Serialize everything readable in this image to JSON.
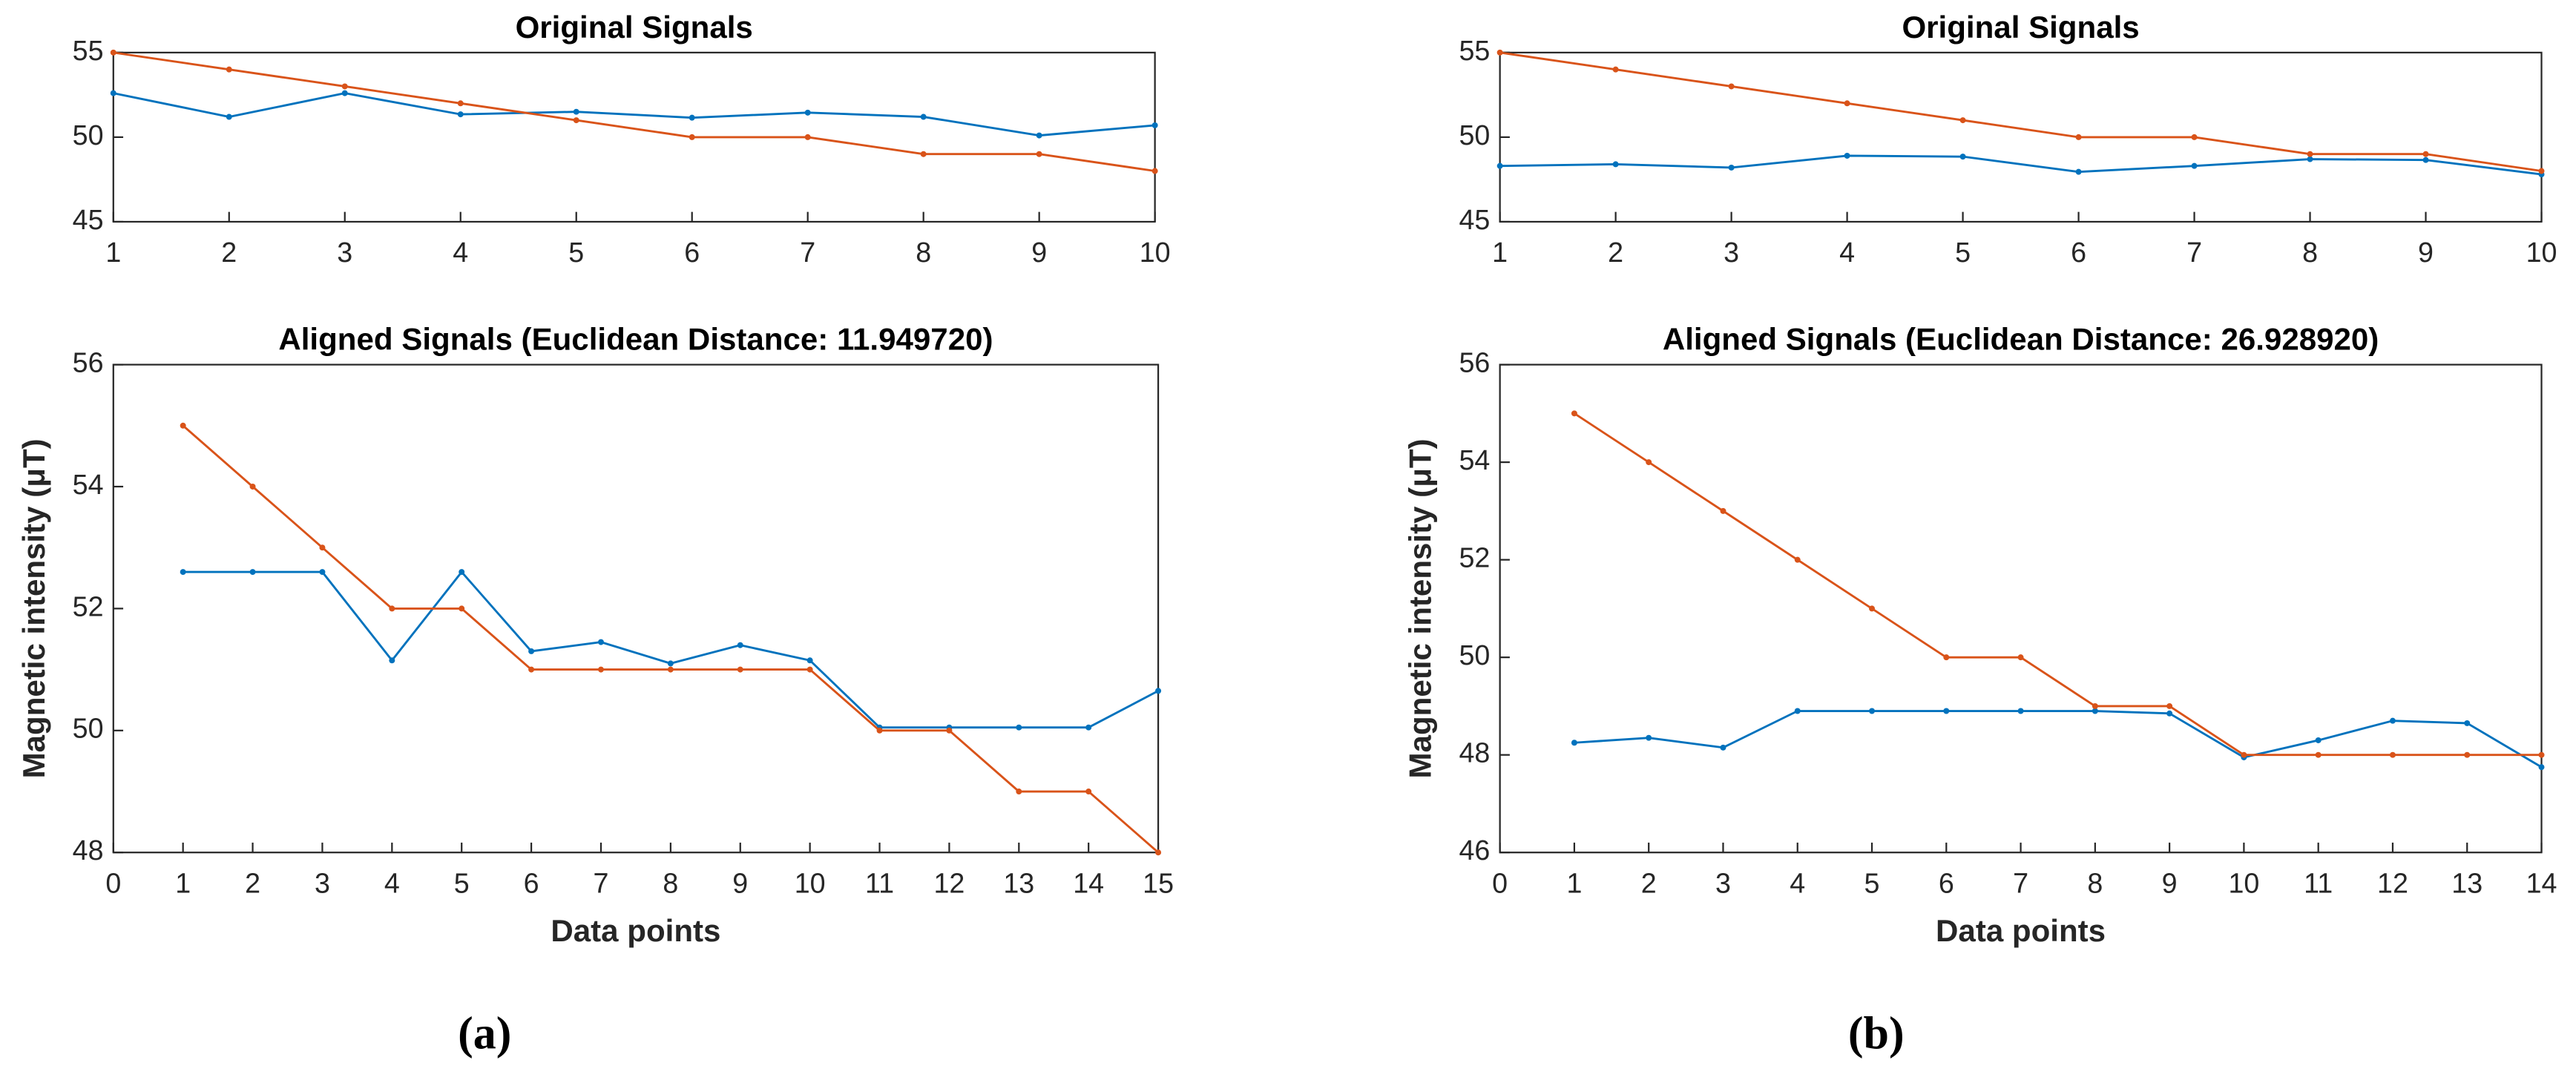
{
  "chart_data": [
    {
      "type": "line",
      "title": "Original Signals",
      "x": [
        1,
        2,
        3,
        4,
        5,
        6,
        7,
        8,
        9,
        10
      ],
      "xlim": [
        1,
        10
      ],
      "xticks": [
        1,
        2,
        3,
        4,
        5,
        6,
        7,
        8,
        9,
        10
      ],
      "ylim": [
        45,
        55
      ],
      "yticks": [
        45,
        50,
        55
      ],
      "series": [
        {
          "color": "#0072BD",
          "values": [
            52.6,
            51.2,
            52.6,
            51.35,
            51.5,
            51.15,
            51.45,
            51.2,
            50.1,
            50.7
          ]
        },
        {
          "color": "#D95319",
          "values": [
            55,
            54,
            53,
            52,
            51,
            50,
            50,
            49,
            49,
            48
          ]
        }
      ]
    },
    {
      "type": "line",
      "title": "Aligned Signals (Euclidean Distance: 11.949720)",
      "x_label": "Data points",
      "y_label": "Magnetic intensity (μT)",
      "x": [
        1,
        2,
        3,
        4,
        5,
        6,
        7,
        8,
        9,
        10,
        11,
        12,
        13,
        14,
        15
      ],
      "xlim": [
        0,
        15
      ],
      "xticks": [
        0,
        1,
        2,
        3,
        4,
        5,
        6,
        7,
        8,
        9,
        10,
        11,
        12,
        13,
        14,
        15
      ],
      "ylim": [
        48,
        56
      ],
      "yticks": [
        48,
        50,
        52,
        54,
        56
      ],
      "series": [
        {
          "color": "#0072BD",
          "values": [
            52.6,
            52.6,
            52.6,
            51.15,
            52.6,
            51.3,
            51.45,
            51.1,
            51.4,
            51.15,
            50.05,
            50.05,
            50.05,
            50.05,
            50.65
          ]
        },
        {
          "color": "#D95319",
          "values": [
            55,
            54,
            53,
            52,
            52,
            51,
            51,
            51,
            51,
            51,
            50,
            50,
            49,
            49,
            48
          ]
        }
      ]
    },
    {
      "type": "line",
      "title": "Original Signals",
      "x": [
        1,
        2,
        3,
        4,
        5,
        6,
        7,
        8,
        9,
        10
      ],
      "xlim": [
        1,
        10
      ],
      "xticks": [
        1,
        2,
        3,
        4,
        5,
        6,
        7,
        8,
        9,
        10
      ],
      "ylim": [
        45,
        55
      ],
      "yticks": [
        45,
        50,
        55
      ],
      "series": [
        {
          "color": "#0072BD",
          "values": [
            48.3,
            48.4,
            48.2,
            48.9,
            48.85,
            47.95,
            48.3,
            48.7,
            48.65,
            47.8
          ]
        },
        {
          "color": "#D95319",
          "values": [
            55,
            54,
            53,
            52,
            51,
            50,
            50,
            49,
            49,
            48
          ]
        }
      ]
    },
    {
      "type": "line",
      "title": "Aligned Signals (Euclidean Distance: 26.928920)",
      "x_label": "Data points",
      "y_label": "Magnetic intensity (μT)",
      "x": [
        1,
        2,
        3,
        4,
        5,
        6,
        7,
        8,
        9,
        10,
        11,
        12,
        13,
        14
      ],
      "xlim": [
        0,
        14
      ],
      "xticks": [
        0,
        1,
        2,
        3,
        4,
        5,
        6,
        7,
        8,
        9,
        10,
        11,
        12,
        13,
        14
      ],
      "ylim": [
        46,
        56
      ],
      "yticks": [
        46,
        48,
        50,
        52,
        54,
        56
      ],
      "series": [
        {
          "color": "#0072BD",
          "values": [
            48.25,
            48.35,
            48.15,
            48.9,
            48.9,
            48.9,
            48.9,
            48.9,
            48.85,
            47.95,
            48.3,
            48.7,
            48.65,
            47.75
          ]
        },
        {
          "color": "#D95319",
          "values": [
            55,
            54,
            53,
            52,
            51,
            50,
            50,
            49,
            49,
            48,
            48,
            48,
            48,
            48
          ]
        }
      ]
    }
  ],
  "panel_labels": [
    "(a)",
    "(b)"
  ]
}
